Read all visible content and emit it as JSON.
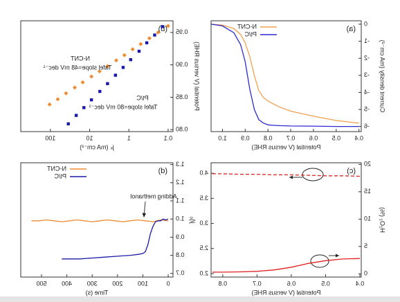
{
  "chart_data": [
    {
      "type": "line",
      "panel_label": "(a)",
      "xlabel": "Potential (V versus RHE)",
      "ylabel": "Current density (mA cm⁻²)",
      "x": [
        1.05,
        1.0,
        0.95,
        0.92,
        0.9,
        0.88,
        0.86,
        0.84,
        0.82,
        0.8,
        0.78,
        0.75,
        0.7,
        0.6,
        0.5,
        0.4
      ],
      "series": [
        {
          "name": "N-CNT",
          "color": "#f0a050",
          "values": [
            0,
            -0.05,
            -0.25,
            -0.6,
            -1.1,
            -1.9,
            -3.0,
            -3.9,
            -4.3,
            -4.5,
            -4.65,
            -4.85,
            -5.1,
            -5.4,
            -5.65,
            -5.8
          ]
        },
        {
          "name": "Pt/C",
          "color": "#2a2ad0",
          "values": [
            0,
            -0.1,
            -0.5,
            -1.2,
            -2.2,
            -3.8,
            -5.0,
            -5.6,
            -5.8,
            -5.9,
            -5.93,
            -5.95,
            -5.97,
            -5.98,
            -6.0,
            -6.0
          ]
        }
      ],
      "xlim": [
        0.39,
        1.05
      ],
      "xticks": [
        0.4,
        0.5,
        0.6,
        0.7,
        0.8,
        0.9,
        {
          "value": 1,
          "label": "1.0"
        }
      ],
      "ylim": [
        -6.3,
        0.2
      ],
      "yticks": [
        -6,
        -5,
        -4,
        -3,
        -2,
        -1,
        0
      ],
      "legend": "upper right"
    },
    {
      "type": "scatter",
      "panel_label": "(b)",
      "xlabel": "jₖ (mA cm⁻²)",
      "ylabel": "Potential (V versus RHE)",
      "xscale": "log",
      "annotations": [
        "N-CNT",
        "Tafel slope=48 mV dec⁻¹",
        "Pt/C",
        "Tafel slope=80 mV dec⁻¹"
      ],
      "series": [
        {
          "color": "#f08a30",
          "marker": "diamond",
          "x": [
            0.1,
            0.18,
            0.3,
            0.5,
            0.8,
            1.3,
            2.1,
            3.5,
            5.6,
            9,
            15,
            24,
            40,
            65,
            105
          ],
          "values": [
            0.96,
            0.95,
            0.941,
            0.932,
            0.924,
            0.915,
            0.907,
            0.898,
            0.89,
            0.882,
            0.873,
            0.865,
            0.856,
            0.847,
            0.839
          ]
        },
        {
          "color": "#1a1aa8",
          "marker": "square",
          "x": [
            0.14,
            0.22,
            0.35,
            0.55,
            0.9,
            1.4,
            2.2,
            3.5,
            5.5,
            9,
            14,
            22,
            35
          ],
          "values": [
            0.959,
            0.946,
            0.934,
            0.921,
            0.908,
            0.896,
            0.884,
            0.871,
            0.859,
            0.846,
            0.834,
            0.822,
            0.809
          ]
        }
      ],
      "xlim": [
        0.075,
        570
      ],
      "xticks": [
        0.1,
        1,
        10,
        100
      ],
      "ylim": [
        0.797,
        0.968
      ],
      "yticks": [
        {
          "value": 0.8,
          "label": "0.80"
        },
        0.85,
        {
          "value": 0.9,
          "label": "0.90"
        },
        0.95
      ]
    },
    {
      "type": "line",
      "panel_label": "(c)",
      "xlabel": "Potential (V versus RHE)",
      "ylabel": "H₂O₂ (%)",
      "x": [
        0.83,
        0.8,
        0.75,
        0.7,
        0.65,
        0.6,
        0.55,
        0.5,
        0.45,
        0.4
      ],
      "series": [
        {
          "color": "#e02020",
          "axis": "y2",
          "linestyle": "dashed",
          "values": [
            3.99,
            3.99,
            3.98,
            3.98,
            3.97,
            3.97,
            3.96,
            3.95,
            3.95,
            3.94
          ]
        },
        {
          "color": "#e02020",
          "linestyle": "solid",
          "values": [
            0.3,
            0.3,
            0.35,
            0.45,
            0.7,
            1.2,
            1.9,
            2.4,
            2.7,
            2.8
          ]
        }
      ],
      "xlim": [
        0.396,
        0.834
      ],
      "xticks": [
        0.4,
        0.5,
        0.6,
        0.7,
        0.8
      ],
      "ylim": [
        -0.6,
        20.3
      ],
      "yticks": [
        0,
        5,
        10,
        15,
        20
      ],
      "y2lim": [
        1.93,
        4.21
      ],
      "y2ticks": [
        {
          "value": 2,
          "label": "2.0"
        },
        2.5,
        {
          "value": 3,
          "label": "3.0"
        },
        3.5,
        {
          "value": 4,
          "label": "4.0"
        }
      ]
    },
    {
      "type": "line",
      "panel_label": "(d)",
      "xlabel": "Time (s)",
      "ylabel": "j/j₀",
      "annotations": [
        "Adding methanol"
      ],
      "series": [
        {
          "name": "N-CNT",
          "color": "#f08a30",
          "x": [
            0,
            30,
            60,
            90,
            120,
            150,
            180,
            210,
            240,
            270,
            300,
            330,
            360,
            390,
            420,
            450,
            480,
            510,
            540
          ],
          "values": [
            0.99,
            0.995,
            0.985,
            0.99,
            0.995,
            0.99,
            0.985,
            0.99,
            0.995,
            0.99,
            0.985,
            0.99,
            0.995,
            0.99,
            0.985,
            0.99,
            0.995,
            0.99,
            0.99
          ]
        },
        {
          "name": "Pt/C",
          "color": "#1a1aa8",
          "x": [
            0,
            10,
            20,
            30,
            40,
            50,
            60,
            70,
            80,
            90,
            100,
            120,
            150,
            200,
            250,
            300,
            350,
            400,
            420
          ],
          "values": [
            1.0,
            0.995,
            1.0,
            0.99,
            0.99,
            0.985,
            0.96,
            0.92,
            0.86,
            0.82,
            0.81,
            0.805,
            0.8,
            0.795,
            0.79,
            0.785,
            0.78,
            0.78,
            0.78
          ]
        }
      ],
      "xlim": [
        -19,
        582
      ],
      "xticks": [
        0,
        100,
        200,
        300,
        400,
        500
      ],
      "ylim": [
        0.68,
        1.31
      ],
      "yticks": [
        0.7,
        0.8,
        0.9,
        {
          "value": 1,
          "label": "1.0"
        },
        1.1,
        1.2,
        1.3
      ],
      "legend": "upper right"
    }
  ]
}
